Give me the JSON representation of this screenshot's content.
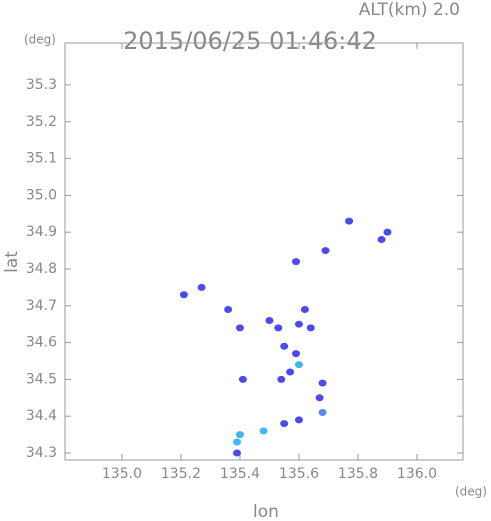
{
  "chart_data": {
    "type": "scatter",
    "title": "2015/06/25 01:46:42",
    "subtitle": "ALT(km) 2.0",
    "y_label": "lat",
    "y_unit": "(deg)",
    "x_label": "lon",
    "x_unit": "(deg)",
    "xlim": [
      134.807,
      136.156
    ],
    "ylim": [
      34.281,
      35.414
    ],
    "xticks": [
      {
        "value": 135,
        "label": "135.0"
      },
      135.2,
      135.4,
      135.6,
      135.8,
      {
        "value": 136,
        "label": "136.0"
      }
    ],
    "yticks": [
      34.3,
      34.4,
      34.5,
      34.6,
      34.7,
      34.8,
      34.9,
      {
        "value": 35,
        "label": "35.0"
      },
      35.1,
      35.2,
      35.3
    ],
    "x": [
      135.21,
      135.27,
      135.36,
      135.4,
      135.41,
      135.5,
      135.53,
      135.55,
      135.59,
      135.57,
      135.54,
      135.6,
      135.62,
      135.64,
      135.6,
      135.68,
      135.67,
      135.68,
      135.6,
      135.55,
      135.48,
      135.4,
      135.39,
      135.39,
      135.77,
      135.88,
      135.9,
      135.69,
      135.59
    ],
    "values": [
      34.73,
      34.75,
      34.69,
      34.64,
      34.5,
      34.66,
      34.64,
      34.59,
      34.57,
      34.52,
      34.5,
      34.65,
      34.69,
      34.64,
      34.54,
      34.49,
      34.45,
      34.41,
      34.39,
      34.38,
      34.36,
      34.35,
      34.33,
      34.3,
      34.93,
      34.88,
      34.9,
      34.85,
      34.82
    ],
    "colors": [
      "#4a4af0",
      "#4a4af0",
      "#4a4af0",
      "#4a4af0",
      "#4a4af0",
      "#4a4af0",
      "#4a4af0",
      "#4a4af0",
      "#4a4af0",
      "#4a4af0",
      "#4a4af0",
      "#4a4af0",
      "#4a4af0",
      "#4a4af0",
      "#3fb8f0",
      "#4a4af0",
      "#4a4af0",
      "#5a8af0",
      "#4a4af0",
      "#4a4af0",
      "#3fb8f0",
      "#3fb8f0",
      "#3fb8f0",
      "#4a4af0",
      "#4a4af0",
      "#4a4af0",
      "#4a4af0",
      "#4a4af0",
      "#4a4af0"
    ]
  }
}
